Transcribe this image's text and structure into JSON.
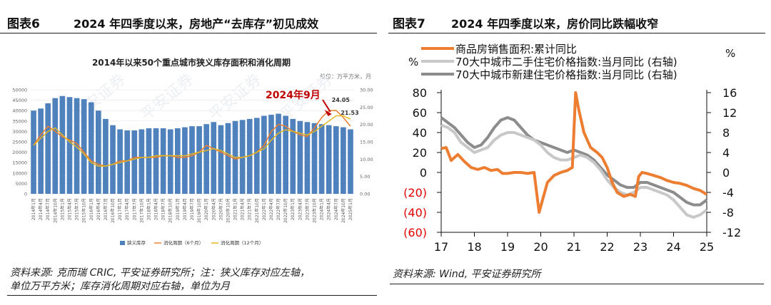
{
  "left": {
    "fig_number": "图表6",
    "fig_title": "2024 年四季度以来，房地产“去库存”初见成效",
    "source_line1": "资料来源: 克而瑞 CRIC, 平安证券研究所；注：狭义库存对应左轴，",
    "source_line2": "单位万平方米；库存消化周期对应右轴，单位为月",
    "chart_title": "2014年以来50个重点城市狭义库存面积和消化周期",
    "unit_label": "单位：万平方米，月",
    "annotation": "2024年9月",
    "label_peak": "24.05",
    "label_end": "21.53",
    "watermark": "平安证券",
    "colors": {
      "bars": "#4f81bd",
      "line6": "#ed7d31",
      "line12": "#e6b822",
      "annot": "#c00000"
    }
  },
  "right": {
    "fig_number": "图表7",
    "fig_title": "2024 年四季度以来，房价同比跌幅收窄",
    "source": "资料来源: Wind, 平安证券研究所",
    "left_unit": "%",
    "right_unit": "%",
    "colors": {
      "sales": "#ed7d31",
      "second": "#c8c8c8",
      "newh": "#8c8c8c",
      "neg": "#e00000"
    }
  },
  "chart_data": [
    {
      "type": "bar+line",
      "title": "2014年以来50个重点城市狭义库存面积和消化周期",
      "ylim_left": [
        0,
        50000
      ],
      "ylim_right": [
        0,
        30
      ],
      "left_ticks": [
        "0",
        "5000",
        "10000",
        "15000",
        "20000",
        "25000",
        "30000",
        "35000",
        "40000",
        "45000",
        "50000"
      ],
      "right_ticks": [
        "0.00",
        "5.00",
        "10.00",
        "15.00",
        "20.00",
        "25.00",
        "30.00"
      ],
      "x_labels": [
        "2014年1月",
        "2014年4月",
        "2014年7月",
        "2014年10月",
        "2015年1月",
        "2015年4月",
        "2015年7月",
        "2015年10月",
        "2016年1月",
        "2016年4月",
        "2016年7月",
        "2016年10月",
        "2017年1月",
        "2017年4月",
        "2017年7月",
        "2017年10月",
        "2018年1月",
        "2018年4月",
        "2018年7月",
        "2018年10月",
        "2019年1月",
        "2019年4月",
        "2019年7月",
        "2019年10月",
        "2020年1月",
        "2020年4月",
        "2020年7月",
        "2020年10月",
        "2021年1月",
        "2021年4月",
        "2021年7月",
        "2021年10月",
        "2022年1月",
        "2022年4月",
        "2022年7月",
        "2022年10月",
        "2023年1月",
        "2023年4月",
        "2023年7月",
        "2023年10月",
        "2024年1月",
        "2024年4月",
        "2024年7月",
        "2024年10月",
        "2025年1月"
      ],
      "legend": [
        "狭义库存",
        "消化周期（6个月）",
        "消化周期（12个月）"
      ],
      "series": [
        {
          "name": "狭义库存",
          "axis": "left",
          "values": [
            40000,
            41000,
            43500,
            46000,
            47000,
            46500,
            46000,
            45500,
            44000,
            40000,
            36000,
            33000,
            31000,
            30500,
            30500,
            31000,
            31500,
            31500,
            31500,
            31000,
            31500,
            32000,
            32500,
            32500,
            33500,
            34500,
            33000,
            34000,
            35000,
            35500,
            36000,
            36500,
            37500,
            38000,
            38500,
            37500,
            36000,
            35000,
            34500,
            34000,
            33500,
            33000,
            32500,
            32000,
            31000
          ]
        },
        {
          "name": "消化周期（6个月）",
          "axis": "right",
          "values": [
            14,
            17,
            19.5,
            18,
            16.5,
            15.5,
            14.5,
            12,
            9.5,
            8.5,
            8,
            8.5,
            9.5,
            9.5,
            10.5,
            10.5,
            10.5,
            10.5,
            11,
            11,
            10.5,
            10.5,
            11,
            12,
            14,
            13,
            12,
            11,
            10,
            10.5,
            11,
            12,
            14,
            18,
            20,
            19.5,
            18,
            17,
            16.5,
            19,
            22,
            24,
            24.05,
            22,
            19.5
          ]
        },
        {
          "name": "消化周期（12个月）",
          "axis": "right",
          "values": [
            14,
            16,
            18,
            19,
            17,
            15,
            13.5,
            11.5,
            9,
            8,
            8,
            8.5,
            9,
            9.5,
            10,
            10.5,
            10.5,
            11,
            11,
            11,
            11,
            11,
            11.5,
            12,
            12.5,
            13,
            12.5,
            11.5,
            10.5,
            10.5,
            11,
            12,
            13,
            15.5,
            17.5,
            18.5,
            18,
            17.5,
            17,
            18,
            19.5,
            21,
            22.5,
            22.5,
            21.53
          ]
        }
      ]
    },
    {
      "type": "line",
      "x_ticks": [
        "17",
        "18",
        "19",
        "20",
        "21",
        "22",
        "23",
        "24",
        "25"
      ],
      "left_ticks": [
        "80",
        "60",
        "40",
        "20",
        "0",
        "(20)",
        "(40)",
        "(60)"
      ],
      "right_ticks": [
        "16",
        "12",
        "8",
        "4",
        "0",
        "-4",
        "-8",
        "-12"
      ],
      "ylim_left": [
        -60,
        80
      ],
      "ylim_right": [
        -12,
        16
      ],
      "series": [
        {
          "name": "商品房销售面积:累计同比",
          "axis": "left",
          "x": [
            17,
            17.15,
            17.3,
            17.5,
            17.7,
            17.9,
            18.1,
            18.3,
            18.5,
            18.7,
            18.85,
            19.0,
            19.2,
            19.4,
            19.6,
            19.8,
            19.95,
            20.05,
            20.2,
            20.4,
            20.6,
            20.8,
            20.95,
            21.05,
            21.15,
            21.3,
            21.5,
            21.7,
            21.85,
            22.0,
            22.15,
            22.3,
            22.5,
            22.7,
            22.85,
            22.95,
            23.05,
            23.2,
            23.4,
            23.6,
            23.8,
            24.0,
            24.2,
            24.4,
            24.6,
            24.8,
            25.0
          ],
          "y": [
            24,
            25,
            12,
            18,
            11,
            5,
            3,
            5,
            2,
            3,
            -1,
            -1,
            0,
            0,
            -1,
            0,
            -40,
            -28,
            -10,
            -3,
            0,
            2,
            5,
            80,
            62,
            40,
            25,
            20,
            15,
            5,
            -10,
            -20,
            -24,
            -22,
            -24,
            -4,
            0,
            -1,
            -3,
            -5,
            -8,
            -10,
            -11,
            -13,
            -16,
            -18,
            -22
          ]
        },
        {
          "name": "70大中城市二手住宅价格指数:当月同比 (右轴)",
          "axis": "right",
          "x": [
            17,
            17.2,
            17.4,
            17.6,
            17.8,
            18.0,
            18.2,
            18.4,
            18.6,
            18.8,
            19.0,
            19.2,
            19.4,
            19.6,
            19.8,
            20.0,
            20.2,
            20.4,
            20.6,
            20.8,
            21.0,
            21.2,
            21.4,
            21.6,
            21.8,
            22.0,
            22.2,
            22.4,
            22.6,
            22.8,
            23.0,
            23.2,
            23.4,
            23.6,
            23.8,
            24.0,
            24.2,
            24.4,
            24.6,
            24.8,
            25.0
          ],
          "y": [
            9.5,
            9,
            8,
            6,
            5,
            4,
            4.5,
            5,
            6.5,
            7.5,
            8,
            8,
            7.5,
            7,
            6.5,
            5.5,
            4,
            3,
            2.5,
            2.5,
            3,
            3.5,
            3,
            2,
            0.5,
            -1.5,
            -3,
            -4,
            -4.5,
            -4,
            -3,
            -3,
            -3.5,
            -4,
            -4.5,
            -5.5,
            -7,
            -8.5,
            -9,
            -8.5,
            -7.5
          ]
        },
        {
          "name": "70大中城市新建住宅价格指数:当月同比 (右轴)",
          "axis": "right",
          "x": [
            17,
            17.2,
            17.4,
            17.6,
            17.8,
            18.0,
            18.2,
            18.4,
            18.6,
            18.8,
            19.0,
            19.2,
            19.4,
            19.6,
            19.8,
            20.0,
            20.2,
            20.4,
            20.6,
            20.8,
            21.0,
            21.2,
            21.4,
            21.6,
            21.8,
            22.0,
            22.2,
            22.4,
            22.6,
            22.8,
            23.0,
            23.2,
            23.4,
            23.6,
            23.8,
            24.0,
            24.2,
            24.4,
            24.6,
            24.8,
            25.0
          ],
          "y": [
            11,
            10,
            9,
            7.5,
            6,
            5,
            5.5,
            7,
            9,
            10.5,
            11,
            10.5,
            9,
            7.5,
            6.5,
            6,
            5.5,
            5,
            4.5,
            4,
            4.5,
            4,
            3.5,
            2.5,
            1,
            -0.5,
            -1.5,
            -2.5,
            -3,
            -3,
            -2,
            -2,
            -2.5,
            -3,
            -3.5,
            -4,
            -5,
            -6,
            -6.5,
            -6.5,
            -5.5
          ]
        }
      ]
    }
  ]
}
